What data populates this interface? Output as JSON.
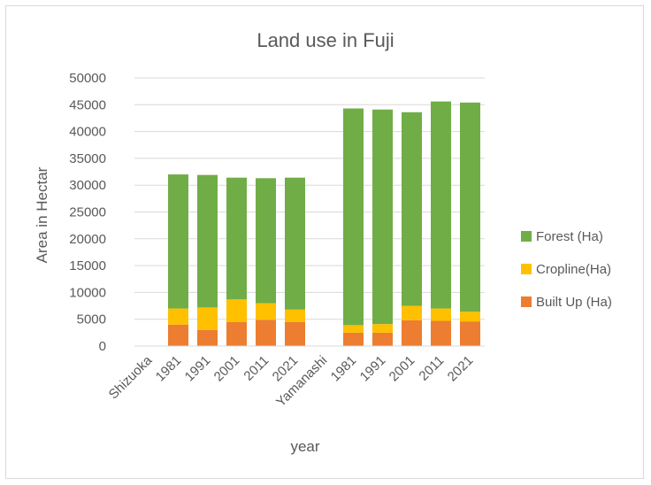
{
  "chart_data": {
    "type": "bar",
    "stacked": true,
    "title": "Land use in Fuji",
    "xlabel": "year",
    "ylabel": "Area in Hectar",
    "ylim": [
      0,
      50000
    ],
    "yticks": [
      0,
      5000,
      10000,
      15000,
      20000,
      25000,
      30000,
      35000,
      40000,
      45000,
      50000
    ],
    "categories": [
      "Shizuoka",
      "1981",
      "1991",
      "2001",
      "2011",
      "2021",
      "Yamanashi",
      "1981",
      "1991",
      "2001",
      "2011",
      "2021"
    ],
    "series": [
      {
        "name": "Built Up (Ha)",
        "color": "#ED7D31",
        "values": [
          0,
          4000,
          3000,
          4500,
          4900,
          4500,
          0,
          2500,
          2500,
          4800,
          4700,
          4600
        ]
      },
      {
        "name": "Cropline(Ha)",
        "color": "#FFC000",
        "values": [
          0,
          3000,
          4200,
          4200,
          3100,
          2300,
          0,
          1400,
          1600,
          2700,
          2300,
          1800
        ]
      },
      {
        "name": "Forest (Ha)",
        "color": "#70AD47",
        "values": [
          0,
          25000,
          24700,
          22700,
          23300,
          24600,
          0,
          40400,
          40000,
          36100,
          38600,
          39000
        ]
      }
    ],
    "grid": true,
    "legend_position": "right"
  }
}
